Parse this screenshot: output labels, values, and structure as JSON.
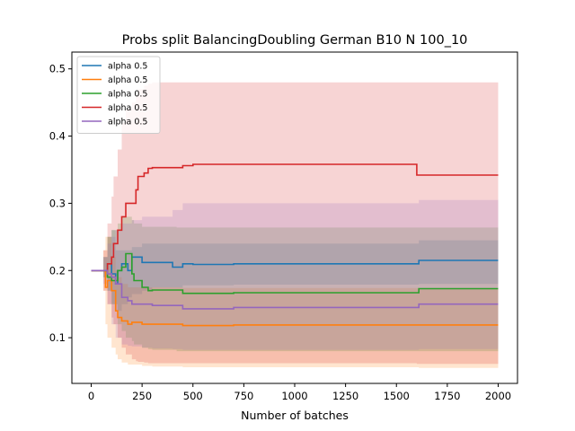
{
  "chart_data": {
    "type": "line",
    "title": "Probs split BalancingDoubling German B10 N 100_10",
    "xlabel": "Number of batches",
    "ylabel": "",
    "xlim": [
      -95,
      2095
    ],
    "ylim": [
      0.032,
      0.525
    ],
    "xticks": [
      0,
      250,
      500,
      750,
      1000,
      1250,
      1500,
      1750,
      2000
    ],
    "yticks": [
      0.1,
      0.2,
      0.3,
      0.4,
      0.5
    ],
    "grid": false,
    "legend_position": "top-left",
    "series": [
      {
        "name": "alpha 0.5",
        "color": "#1f77b4",
        "x": [
          0,
          60,
          80,
          100,
          120,
          130,
          150,
          180,
          200,
          250,
          300,
          400,
          450,
          500,
          700,
          1000,
          1600,
          1610,
          2000
        ],
        "y": [
          0.2,
          0.2,
          0.21,
          0.195,
          0.18,
          0.2,
          0.21,
          0.2,
          0.22,
          0.212,
          0.212,
          0.205,
          0.21,
          0.209,
          0.21,
          0.21,
          0.21,
          0.215,
          0.215
        ],
        "lower": [
          0.2,
          0.19,
          0.17,
          0.15,
          0.14,
          0.14,
          0.15,
          0.16,
          0.165,
          0.17,
          0.175,
          0.175,
          0.178,
          0.178,
          0.179,
          0.179,
          0.179,
          0.18,
          0.18
        ],
        "upper": [
          0.2,
          0.22,
          0.25,
          0.26,
          0.23,
          0.23,
          0.23,
          0.23,
          0.235,
          0.24,
          0.24,
          0.24,
          0.24,
          0.24,
          0.24,
          0.24,
          0.24,
          0.245,
          0.245
        ]
      },
      {
        "name": "alpha 0.5",
        "color": "#ff7f0e",
        "x": [
          0,
          60,
          70,
          80,
          100,
          120,
          130,
          150,
          180,
          200,
          250,
          300,
          450,
          700,
          1000,
          1600,
          1610,
          2000
        ],
        "y": [
          0.2,
          0.2,
          0.175,
          0.185,
          0.17,
          0.14,
          0.13,
          0.125,
          0.12,
          0.123,
          0.12,
          0.12,
          0.118,
          0.119,
          0.119,
          0.119,
          0.119,
          0.119
        ],
        "lower": [
          0.2,
          0.17,
          0.12,
          0.1,
          0.085,
          0.075,
          0.068,
          0.063,
          0.06,
          0.06,
          0.058,
          0.057,
          0.056,
          0.056,
          0.056,
          0.056,
          0.055,
          0.055
        ],
        "upper": [
          0.2,
          0.23,
          0.25,
          0.25,
          0.22,
          0.2,
          0.19,
          0.18,
          0.175,
          0.175,
          0.175,
          0.175,
          0.174,
          0.174,
          0.174,
          0.174,
          0.173,
          0.173
        ]
      },
      {
        "name": "alpha 0.5",
        "color": "#2ca02c",
        "x": [
          0,
          60,
          80,
          100,
          130,
          150,
          170,
          200,
          210,
          250,
          280,
          300,
          420,
          450,
          700,
          1000,
          1600,
          1610,
          2000
        ],
        "y": [
          0.2,
          0.2,
          0.19,
          0.185,
          0.2,
          0.205,
          0.225,
          0.195,
          0.185,
          0.175,
          0.17,
          0.171,
          0.171,
          0.166,
          0.167,
          0.167,
          0.167,
          0.173,
          0.173
        ],
        "lower": [
          0.2,
          0.19,
          0.17,
          0.15,
          0.12,
          0.11,
          0.1,
          0.095,
          0.09,
          0.085,
          0.083,
          0.082,
          0.08,
          0.08,
          0.08,
          0.08,
          0.08,
          0.08,
          0.08
        ],
        "upper": [
          0.2,
          0.22,
          0.25,
          0.26,
          0.27,
          0.28,
          0.28,
          0.275,
          0.27,
          0.265,
          0.265,
          0.265,
          0.264,
          0.264,
          0.264,
          0.264,
          0.264,
          0.264,
          0.264
        ]
      },
      {
        "name": "alpha 0.5",
        "color": "#d62728",
        "x": [
          0,
          60,
          80,
          100,
          110,
          130,
          150,
          170,
          200,
          220,
          230,
          260,
          280,
          300,
          400,
          450,
          500,
          700,
          1000,
          1590,
          1600,
          2000
        ],
        "y": [
          0.2,
          0.2,
          0.21,
          0.22,
          0.24,
          0.26,
          0.28,
          0.3,
          0.3,
          0.32,
          0.34,
          0.345,
          0.352,
          0.353,
          0.353,
          0.356,
          0.358,
          0.358,
          0.358,
          0.358,
          0.342,
          0.342
        ],
        "lower": [
          0.2,
          0.17,
          0.15,
          0.13,
          0.12,
          0.1,
          0.085,
          0.075,
          0.068,
          0.065,
          0.064,
          0.063,
          0.062,
          0.062,
          0.062,
          0.062,
          0.062,
          0.062,
          0.062,
          0.062,
          0.061,
          0.061
        ],
        "upper": [
          0.2,
          0.23,
          0.27,
          0.31,
          0.34,
          0.38,
          0.42,
          0.44,
          0.45,
          0.46,
          0.47,
          0.475,
          0.478,
          0.48,
          0.48,
          0.48,
          0.48,
          0.48,
          0.48,
          0.48,
          0.48,
          0.48
        ]
      },
      {
        "name": "alpha 0.5",
        "color": "#9467bd",
        "x": [
          0,
          60,
          80,
          100,
          120,
          150,
          180,
          200,
          250,
          300,
          400,
          450,
          700,
          1000,
          1600,
          1610,
          2000
        ],
        "y": [
          0.2,
          0.2,
          0.195,
          0.19,
          0.18,
          0.16,
          0.155,
          0.15,
          0.15,
          0.148,
          0.148,
          0.143,
          0.145,
          0.145,
          0.145,
          0.15,
          0.15
        ],
        "lower": [
          0.2,
          0.18,
          0.15,
          0.12,
          0.1,
          0.09,
          0.088,
          0.087,
          0.085,
          0.084,
          0.083,
          0.082,
          0.082,
          0.082,
          0.082,
          0.083,
          0.083
        ],
        "upper": [
          0.2,
          0.22,
          0.24,
          0.25,
          0.26,
          0.27,
          0.27,
          0.275,
          0.28,
          0.28,
          0.29,
          0.3,
          0.3,
          0.3,
          0.3,
          0.305,
          0.305
        ]
      }
    ]
  }
}
